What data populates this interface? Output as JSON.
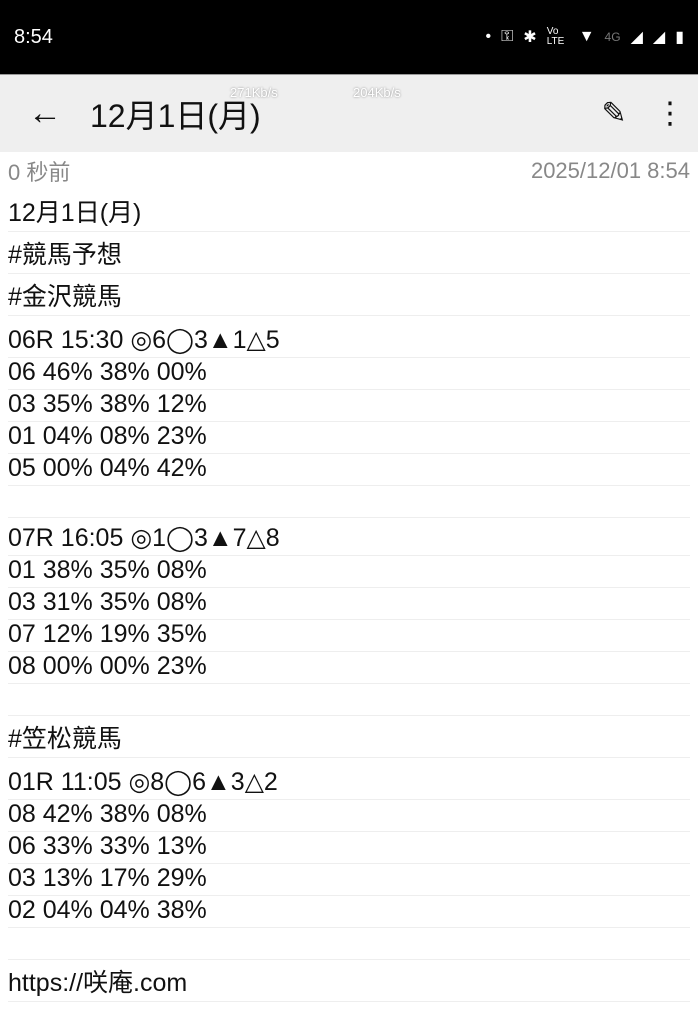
{
  "status_bar": {
    "time": "8:54",
    "icons": [
      "dot",
      "vpn-key-icon",
      "bluetooth-icon",
      "volte-icon",
      "wifi-icon",
      "4g-icon",
      "signal-icon",
      "signal-icon",
      "battery-icon"
    ],
    "network": "4G",
    "volte": "Vo LTE"
  },
  "app_bar": {
    "title": "12月1日(月)",
    "speed_1": "271Kb/s",
    "speed_2": "204Kb/s"
  },
  "meta": {
    "relative_time": "0 秒前",
    "timestamp": "2025/12/01 8:54"
  },
  "lines": [
    {
      "t": "12月1日(月)",
      "h": "tall"
    },
    {
      "t": "#競馬予想",
      "h": "tall"
    },
    {
      "t": "#金沢競馬",
      "h": "tall"
    },
    {
      "t": "06R 15:30 ◎6◯3▲1△5",
      "h": "tall"
    },
    {
      "t": "06 46% 38% 00%",
      "h": "short"
    },
    {
      "t": "03 35% 38% 12%",
      "h": "short"
    },
    {
      "t": "01 04% 08% 23%",
      "h": "short"
    },
    {
      "t": "05 00% 04% 42%",
      "h": "short"
    },
    {
      "t": "",
      "h": "short"
    },
    {
      "t": "07R 16:05 ◎1◯3▲7△8",
      "h": "mid"
    },
    {
      "t": "01 38% 35% 08%",
      "h": "short"
    },
    {
      "t": "03 31% 35% 08%",
      "h": "short"
    },
    {
      "t": "07 12% 19% 35%",
      "h": "short"
    },
    {
      "t": "08 00% 00% 23%",
      "h": "short"
    },
    {
      "t": "",
      "h": "short"
    },
    {
      "t": "#笠松競馬",
      "h": "tall"
    },
    {
      "t": "01R 11:05 ◎8◯6▲3△2",
      "h": "tall"
    },
    {
      "t": "08 42% 38% 08%",
      "h": "short"
    },
    {
      "t": "06 33% 33% 13%",
      "h": "short"
    },
    {
      "t": "03 13% 17% 29%",
      "h": "short"
    },
    {
      "t": "02 04% 04% 38%",
      "h": "short"
    },
    {
      "t": "",
      "h": "short"
    },
    {
      "t": "https://咲庵.com",
      "h": "tall"
    }
  ]
}
